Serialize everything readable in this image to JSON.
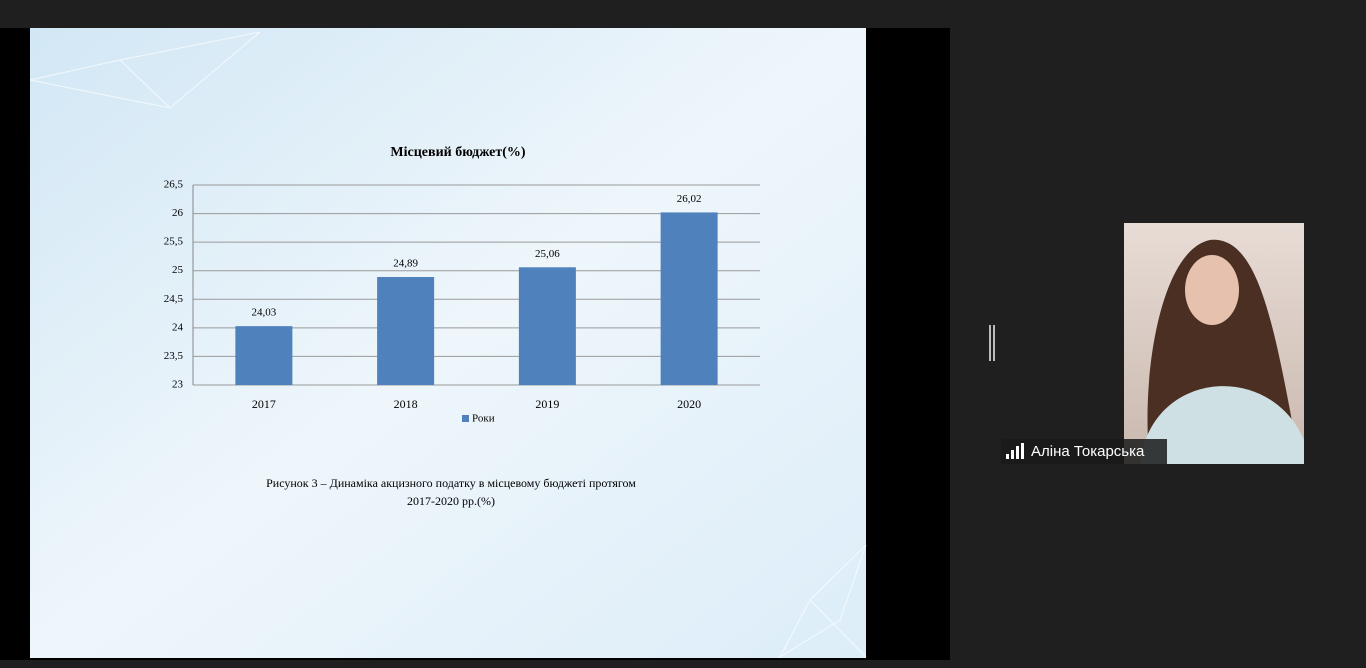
{
  "chart_data": {
    "type": "bar",
    "title": "Місцевий бюджет(%)",
    "categories": [
      "2017",
      "2018",
      "2019",
      "2020"
    ],
    "series": [
      {
        "name": "Роки",
        "color": "#4f81bd",
        "values": [
          24.03,
          24.89,
          25.06,
          26.02
        ],
        "value_labels": [
          "24,03",
          "24,89",
          "25,06",
          "26,02"
        ]
      }
    ],
    "ylim": [
      23,
      26.5
    ],
    "yticks": [
      23,
      {
        "value": 23.5,
        "label": "23,5"
      },
      24,
      {
        "value": 24.5,
        "label": "24,5"
      },
      25,
      {
        "value": 25.5,
        "label": "25,5"
      },
      26,
      {
        "value": 26.5,
        "label": "26,5"
      }
    ],
    "grid": true,
    "legend": "bottom"
  },
  "slide": {
    "caption": [
      "Рисунок 3 – Динаміка акцизного  податку в місцевому бюджеті протягом",
      "2017-2020 рр.(%)"
    ]
  },
  "participant": {
    "name": "Аліна Токарська"
  }
}
